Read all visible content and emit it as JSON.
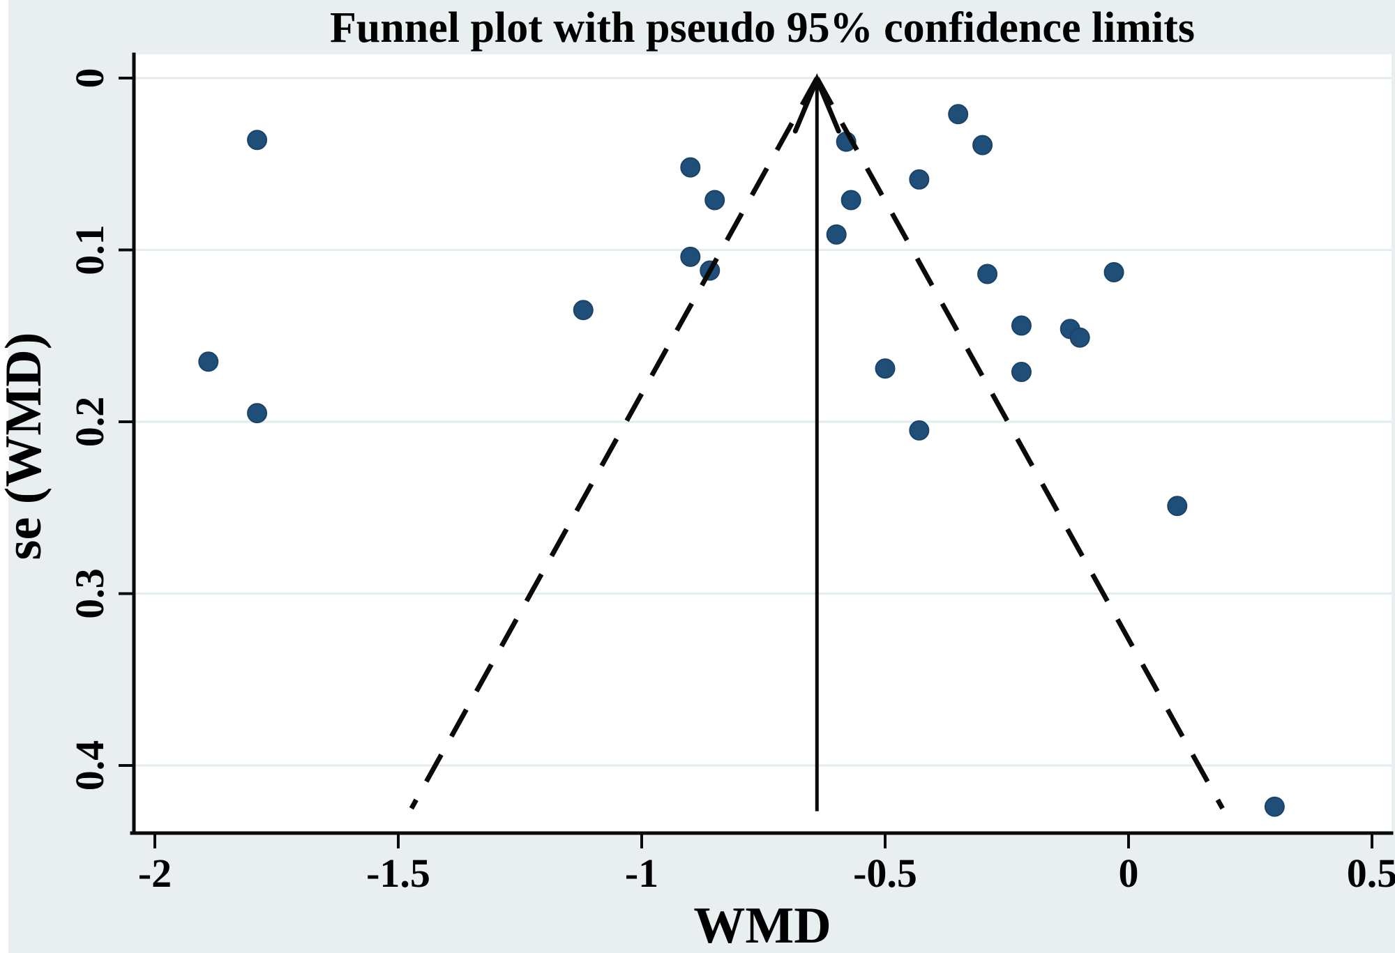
{
  "page_title": "Funnel plot with pseudo 95% confidence limits",
  "colors": {
    "background": "#e9eef1",
    "plot_background": "#ffffff",
    "gridline": "#e2edef",
    "axis": "#0a0a0a",
    "marker": "#1f4e79"
  },
  "chart_data": {
    "type": "scatter",
    "title": "Funnel plot with pseudo 95% confidence limits",
    "xlabel": "WMD",
    "ylabel": "se (WMD)",
    "x_ticks": [
      -2,
      -1.5,
      -1,
      -0.5,
      0,
      0.5
    ],
    "x_tick_labels": [
      "-2",
      "-1.5",
      "-1",
      "-0.5",
      "0",
      "0.5"
    ],
    "y_ticks": [
      0,
      0.1,
      0.2,
      0.3,
      0.4
    ],
    "y_tick_labels": [
      "0",
      "0.1",
      "0.2",
      "0.3",
      "0.4"
    ],
    "xlim": [
      -2.04,
      0.54
    ],
    "ylim": [
      0,
      0.44
    ],
    "y_axis_inverted": true,
    "grid": "horizontal-only",
    "legend": "none",
    "pooled_estimate_wmd": -0.64,
    "funnel": {
      "center": -0.64,
      "z": 1.96,
      "se_start": 0,
      "se_end": 0.425
    },
    "points": [
      {
        "wmd": -1.79,
        "se": 0.036
      },
      {
        "wmd": -1.89,
        "se": 0.165
      },
      {
        "wmd": -1.79,
        "se": 0.195
      },
      {
        "wmd": -1.12,
        "se": 0.135
      },
      {
        "wmd": -0.9,
        "se": 0.052
      },
      {
        "wmd": -0.85,
        "se": 0.071
      },
      {
        "wmd": -0.9,
        "se": 0.104
      },
      {
        "wmd": -0.86,
        "se": 0.112
      },
      {
        "wmd": -0.58,
        "se": 0.037
      },
      {
        "wmd": -0.57,
        "se": 0.071
      },
      {
        "wmd": -0.6,
        "se": 0.091
      },
      {
        "wmd": -0.43,
        "se": 0.059
      },
      {
        "wmd": -0.35,
        "se": 0.021
      },
      {
        "wmd": -0.3,
        "se": 0.039
      },
      {
        "wmd": -0.29,
        "se": 0.114
      },
      {
        "wmd": -0.03,
        "se": 0.113
      },
      {
        "wmd": -0.22,
        "se": 0.144
      },
      {
        "wmd": -0.12,
        "se": 0.146
      },
      {
        "wmd": -0.1,
        "se": 0.151
      },
      {
        "wmd": -0.22,
        "se": 0.171
      },
      {
        "wmd": -0.5,
        "se": 0.169
      },
      {
        "wmd": -0.43,
        "se": 0.205
      },
      {
        "wmd": 0.1,
        "se": 0.249
      },
      {
        "wmd": 0.3,
        "se": 0.424
      }
    ]
  }
}
